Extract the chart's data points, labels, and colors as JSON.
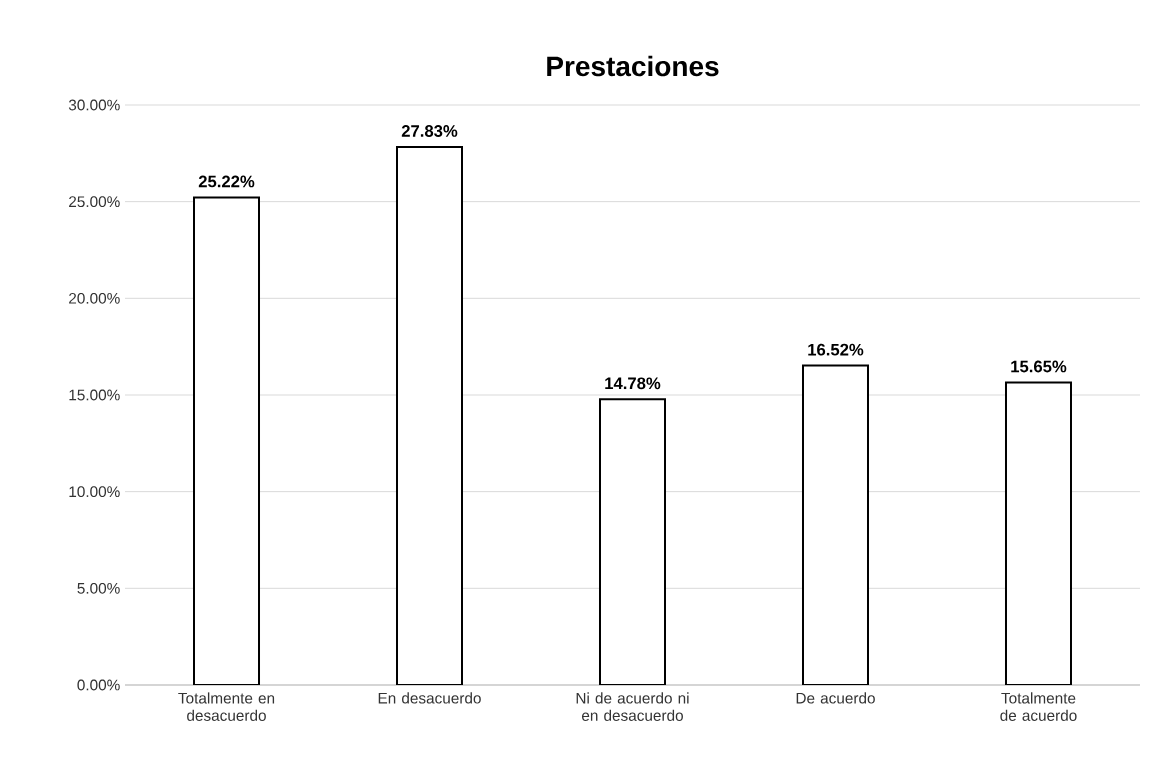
{
  "chart_data": {
    "type": "bar",
    "title": "Prestaciones",
    "categories": [
      "Totalmente en desacuerdo",
      "En desacuerdo",
      "Ni de acuerdo ni en desacuerdo",
      "De acuerdo",
      "Totalmente de acuerdo"
    ],
    "values": [
      25.22,
      27.83,
      14.78,
      16.52,
      15.65
    ],
    "value_labels": [
      "25.22%",
      "27.83%",
      "14.78%",
      "16.52%",
      "15.65%"
    ],
    "color": "#ffffff",
    "ylim": [
      0,
      30
    ],
    "yticks": [
      {
        "value": 0,
        "label": "0.00%"
      },
      {
        "value": 5,
        "label": "5.00%"
      },
      {
        "value": 10,
        "label": "10.00%"
      },
      {
        "value": 15,
        "label": "15.00%"
      },
      {
        "value": 20,
        "label": "20.00%"
      },
      {
        "value": 25,
        "label": "25.00%"
      },
      {
        "value": 30,
        "label": "30.00%"
      }
    ],
    "grid": "y"
  }
}
